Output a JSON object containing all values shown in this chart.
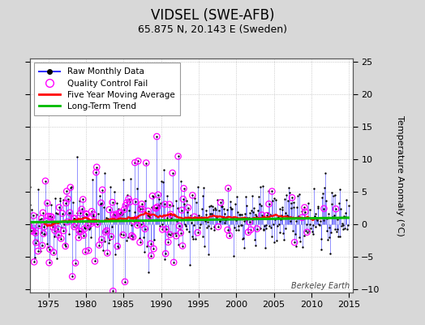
{
  "title": "VIDSEL (SWE-AFB)",
  "subtitle": "65.875 N, 20.143 E (Sweden)",
  "ylabel": "Temperature Anomaly (°C)",
  "watermark": "Berkeley Earth",
  "xlim": [
    1972.5,
    2015.5
  ],
  "ylim": [
    -10.5,
    25.5
  ],
  "yticks": [
    -10,
    -5,
    0,
    5,
    10,
    15,
    20,
    25
  ],
  "xticks": [
    1975,
    1980,
    1985,
    1990,
    1995,
    2000,
    2005,
    2010,
    2015
  ],
  "raw_color": "#3333FF",
  "raw_marker_color": "#000000",
  "qc_color": "#FF00FF",
  "moving_avg_color": "#FF0000",
  "trend_color": "#00BB00",
  "bg_color": "#D8D8D8",
  "plot_bg_color": "#FFFFFF",
  "grid_color": "#BBBBBB",
  "seed": 42,
  "n_months": 516,
  "start_year": 1972.0,
  "legend_loc": "upper left"
}
